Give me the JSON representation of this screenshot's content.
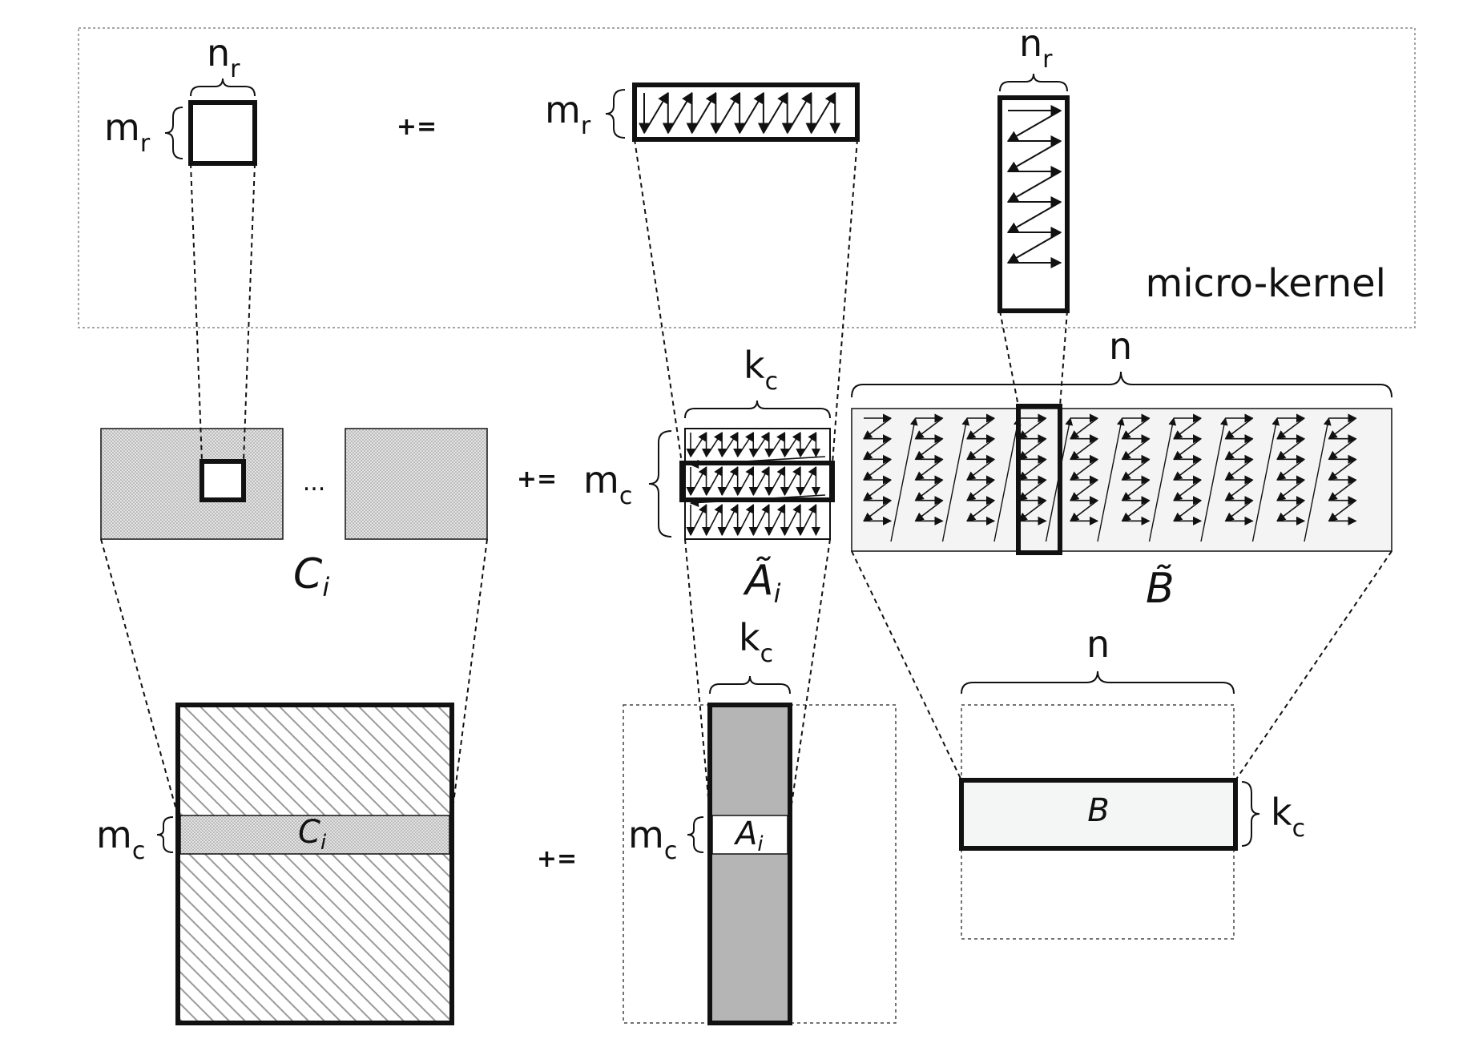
{
  "micro_kernel": {
    "title": "micro-kernel",
    "c_width_label": "n",
    "c_width_sub": "r",
    "c_height_label": "m",
    "c_height_sub": "r",
    "op": "+=",
    "a_height_label": "m",
    "a_height_sub": "r",
    "b_width_label": "n",
    "b_width_sub": "r"
  },
  "middle": {
    "ellipsis": "...",
    "c_name": "C",
    "c_sub": "i",
    "op": "+=",
    "a_height_label": "m",
    "a_height_sub": "c",
    "a_width_label": "k",
    "a_width_sub": "c",
    "a_name": "Ã",
    "a_sub": "i",
    "b_width_label": "n",
    "b_name": "B̃"
  },
  "bottom": {
    "c_height_label": "m",
    "c_height_sub": "c",
    "c_name": "C",
    "c_sub": "i",
    "op": "+=",
    "a_width_label": "k",
    "a_width_sub": "c",
    "a_height_label": "m",
    "a_height_sub": "c",
    "a_name": "A",
    "a_sub": "i",
    "b_width_label": "n",
    "b_height_label": "k",
    "b_height_sub": "c",
    "b_name": "B"
  },
  "colors": {
    "stroke": "#111111",
    "dot_fill": "#d9d9d9",
    "panel_fill": "#b5b5b5",
    "b_panel_fill": "#f3f6f5",
    "btilde_fill": "#f4f4f4",
    "hatch": "#9a9a9a"
  }
}
